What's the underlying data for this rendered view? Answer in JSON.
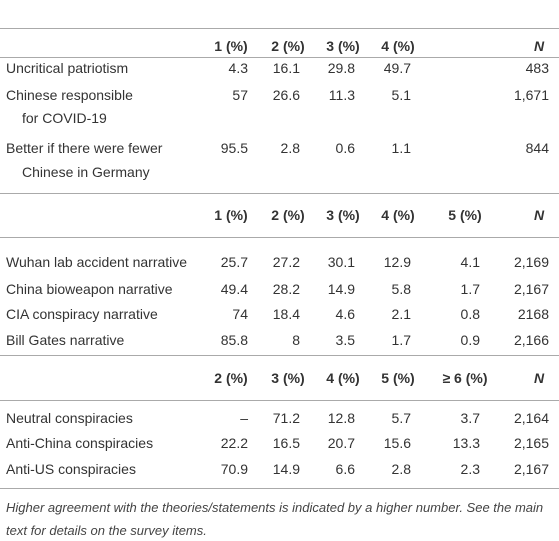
{
  "sections": [
    {
      "columns": [
        "1 (%)",
        "2 (%)",
        "3 (%)",
        "4 (%)",
        "N"
      ],
      "rows": [
        {
          "label": [
            "Uncritical patriotism"
          ],
          "values": [
            "4.3",
            "16.1",
            "29.8",
            "49.7",
            "483"
          ]
        },
        {
          "label": [
            "Chinese responsible",
            "for COVID-19"
          ],
          "values": [
            "57",
            "26.6",
            "11.3",
            "5.1",
            "1,671"
          ]
        },
        {
          "label": [
            "Better if there were fewer",
            "Chinese in Germany"
          ],
          "values": [
            "95.5",
            "2.8",
            "0.6",
            "1.1",
            "844"
          ]
        }
      ]
    },
    {
      "columns": [
        "1 (%)",
        "2 (%)",
        "3 (%)",
        "4 (%)",
        "5 (%)",
        "N"
      ],
      "rows": [
        {
          "label": [
            "Wuhan lab accident narrative"
          ],
          "values": [
            "25.7",
            "27.2",
            "30.1",
            "12.9",
            "4.1",
            "2,169"
          ]
        },
        {
          "label": [
            "China bioweapon narrative"
          ],
          "values": [
            "49.4",
            "28.2",
            "14.9",
            "5.8",
            "1.7",
            "2,167"
          ]
        },
        {
          "label": [
            "CIA conspiracy narrative"
          ],
          "values": [
            "74",
            "18.4",
            "4.6",
            "2.1",
            "0.8",
            "2168"
          ]
        },
        {
          "label": [
            "Bill Gates narrative"
          ],
          "values": [
            "85.8",
            "8",
            "3.5",
            "1.7",
            "0.9",
            "2,166"
          ]
        }
      ]
    },
    {
      "columns": [
        "2 (%)",
        "3 (%)",
        "4 (%)",
        "5 (%)",
        "≥ 6 (%)",
        "N"
      ],
      "rows": [
        {
          "label": [
            "Neutral conspiracies"
          ],
          "values": [
            "–",
            "71.2",
            "12.8",
            "5.7",
            "3.7",
            "2,164"
          ]
        },
        {
          "label": [
            "Anti-China conspiracies"
          ],
          "values": [
            "22.2",
            "16.5",
            "20.7",
            "15.6",
            "13.3",
            "2,165"
          ]
        },
        {
          "label": [
            "Anti-US conspiracies"
          ],
          "values": [
            "70.9",
            "14.9",
            "6.6",
            "2.8",
            "2.3",
            "2,167"
          ]
        }
      ]
    }
  ],
  "footnote": "Higher agreement with the theories/statements is indicated by a higher number. See the main text for details on the survey items."
}
